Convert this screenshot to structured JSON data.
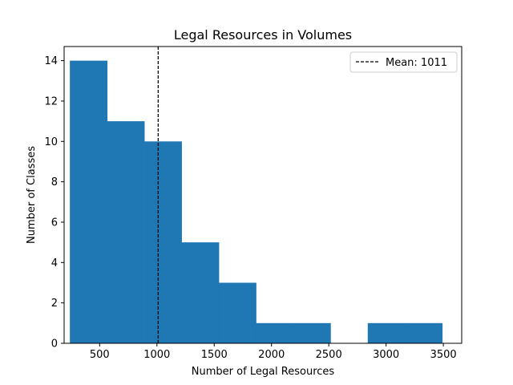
{
  "chart_data": {
    "type": "bar",
    "title": "Legal Resources in Volumes",
    "xlabel": "Number of Legal Resources",
    "ylabel": "Number of Classes",
    "xlim": [
      190,
      3660
    ],
    "ylim": [
      0,
      14.7
    ],
    "x_ticks": [
      500,
      1000,
      1500,
      2000,
      2500,
      3000,
      3500
    ],
    "y_ticks": [
      0,
      2,
      4,
      6,
      8,
      10,
      12,
      14
    ],
    "bin_edges": [
      240,
      565,
      890,
      1215,
      1540,
      1865,
      2190,
      2515,
      2840,
      3165,
      3490
    ],
    "counts": [
      14,
      11,
      10,
      5,
      3,
      1,
      1,
      0,
      1,
      1
    ],
    "bar_color": "#1f77b4",
    "grid": false,
    "mean_line": {
      "x": 1011,
      "label": "Mean: 1011",
      "color": "#000000",
      "style": "dashed"
    },
    "legend": {
      "placement": "top-right",
      "entries": [
        "Mean: 1011"
      ]
    }
  }
}
